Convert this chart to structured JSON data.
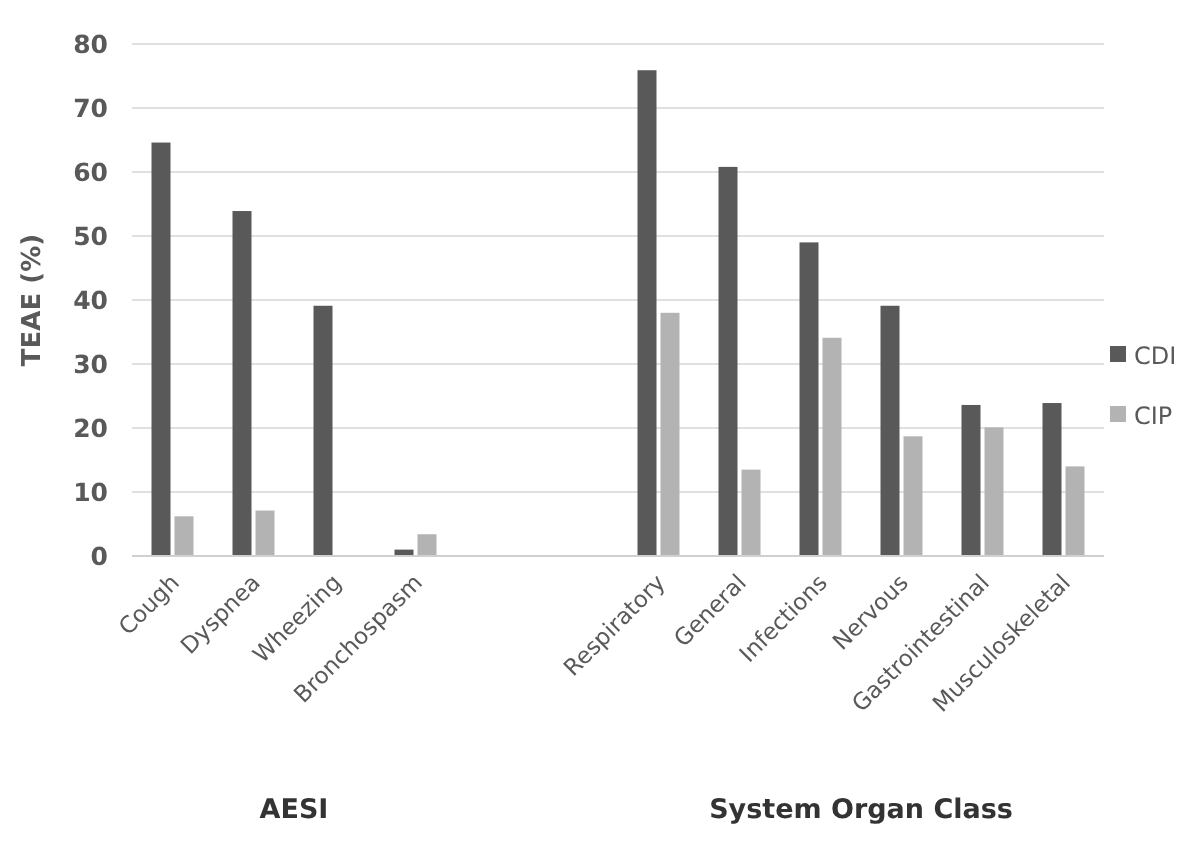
{
  "chart_data": {
    "type": "bar",
    "ylabel": "TEAE (%)",
    "categories": [
      "Cough",
      "Dyspnea",
      "Wheezing",
      "Bronchospasm",
      null,
      null,
      "Respiratory",
      "General",
      "Infections",
      "Nervous",
      "Gastrointestinal",
      "Musculoskeletal"
    ],
    "series": [
      {
        "name": "CDI",
        "color": "#595959",
        "values": [
          64.6,
          53.9,
          39.1,
          1.0,
          null,
          null,
          75.9,
          60.8,
          49.0,
          39.1,
          23.6,
          23.9
        ]
      },
      {
        "name": "CIP",
        "color": "#b3b3b3",
        "values": [
          6.2,
          7.1,
          0,
          3.4,
          null,
          null,
          38.0,
          13.5,
          34.1,
          18.7,
          20.1,
          14.0
        ]
      }
    ],
    "ylim": [
      0,
      80
    ],
    "yticks": [
      0,
      10,
      20,
      30,
      40,
      50,
      60,
      70,
      80
    ],
    "grid": "y",
    "legend": "right",
    "annotations": [
      "AESI",
      "System Organ Class"
    ]
  }
}
